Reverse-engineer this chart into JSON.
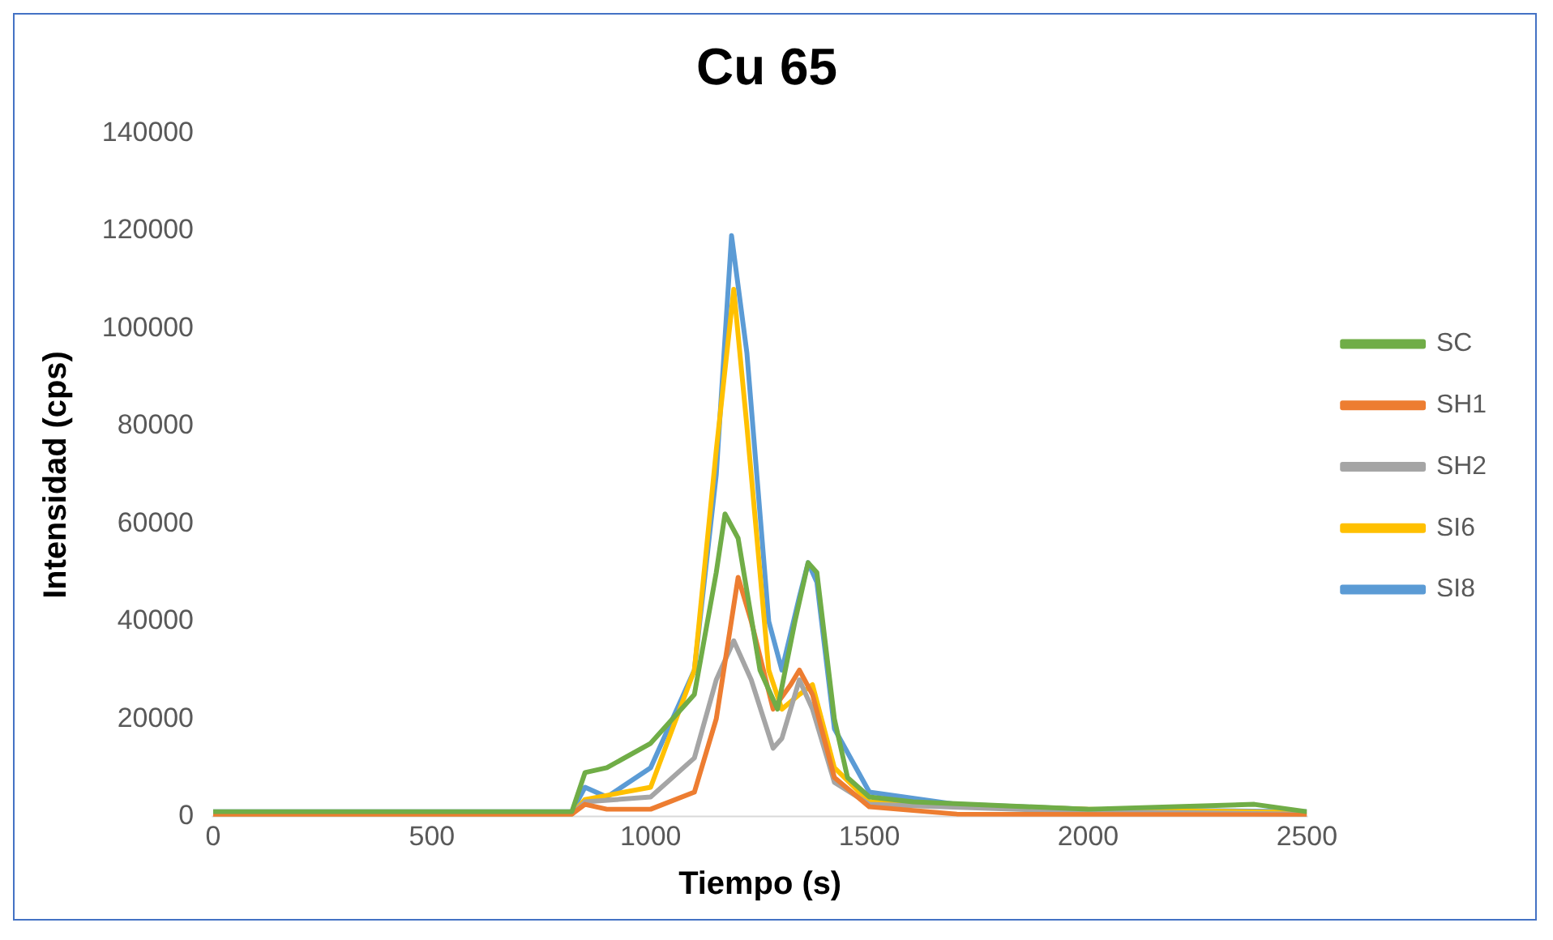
{
  "chart_data": {
    "type": "line",
    "title": "Cu 65",
    "xlabel": "Tiempo (s)",
    "ylabel": "Intensidad (cps)",
    "xlim": [
      0,
      2500
    ],
    "xticks": [
      0,
      500,
      1000,
      1500,
      2000,
      2500
    ],
    "ylim": [
      0,
      140000
    ],
    "yticks": [
      0,
      20000,
      40000,
      60000,
      80000,
      100000,
      120000,
      140000
    ],
    "grid": false,
    "legend": "right",
    "marker": "none",
    "line_style": "solid",
    "series": [
      {
        "name": "SC",
        "color": "#70ad47",
        "x": [
          0,
          500,
          820,
          850,
          900,
          1000,
          1100,
          1150,
          1170,
          1200,
          1250,
          1290,
          1330,
          1360,
          1380,
          1420,
          1450,
          1500,
          1600,
          2000,
          2380,
          2500
        ],
        "values": [
          1000,
          1000,
          1000,
          9000,
          10000,
          15000,
          25000,
          50000,
          62000,
          57000,
          30000,
          22000,
          40000,
          52000,
          50000,
          20000,
          8000,
          4000,
          3000,
          1500,
          2500,
          1000
        ]
      },
      {
        "name": "SH1",
        "color": "#ed7d31",
        "x": [
          0,
          500,
          820,
          850,
          900,
          1000,
          1100,
          1150,
          1200,
          1230,
          1280,
          1320,
          1340,
          1370,
          1420,
          1500,
          1700,
          2500
        ],
        "values": [
          500,
          500,
          500,
          2500,
          1500,
          1500,
          5000,
          20000,
          49000,
          40000,
          22000,
          27000,
          30000,
          25000,
          8000,
          2000,
          500,
          300
        ]
      },
      {
        "name": "SH2",
        "color": "#a5a5a5",
        "x": [
          0,
          500,
          820,
          850,
          1000,
          1100,
          1150,
          1190,
          1230,
          1280,
          1300,
          1340,
          1370,
          1420,
          1500,
          2000,
          2500
        ],
        "values": [
          500,
          500,
          500,
          3000,
          4000,
          12000,
          28000,
          36000,
          28000,
          14000,
          16000,
          28000,
          22000,
          7000,
          2500,
          1000,
          500
        ]
      },
      {
        "name": "SI6",
        "color": "#ffc000",
        "x": [
          0,
          500,
          820,
          850,
          1000,
          1100,
          1150,
          1190,
          1220,
          1270,
          1300,
          1340,
          1370,
          1420,
          1500,
          2000,
          2500
        ],
        "values": [
          500,
          500,
          500,
          3500,
          6000,
          30000,
          75000,
          108000,
          80000,
          30000,
          22000,
          25000,
          27000,
          10000,
          3000,
          1500,
          800
        ]
      },
      {
        "name": "SI8",
        "color": "#5b9bd5",
        "x": [
          0,
          500,
          820,
          850,
          900,
          1000,
          1100,
          1150,
          1185,
          1220,
          1270,
          1300,
          1340,
          1360,
          1380,
          1420,
          1500,
          1700,
          2000,
          2500
        ],
        "values": [
          1000,
          1000,
          1000,
          6000,
          4000,
          10000,
          30000,
          70000,
          119000,
          95000,
          40000,
          30000,
          45000,
          52000,
          48000,
          18000,
          5000,
          2500,
          1500,
          1000
        ]
      }
    ]
  }
}
